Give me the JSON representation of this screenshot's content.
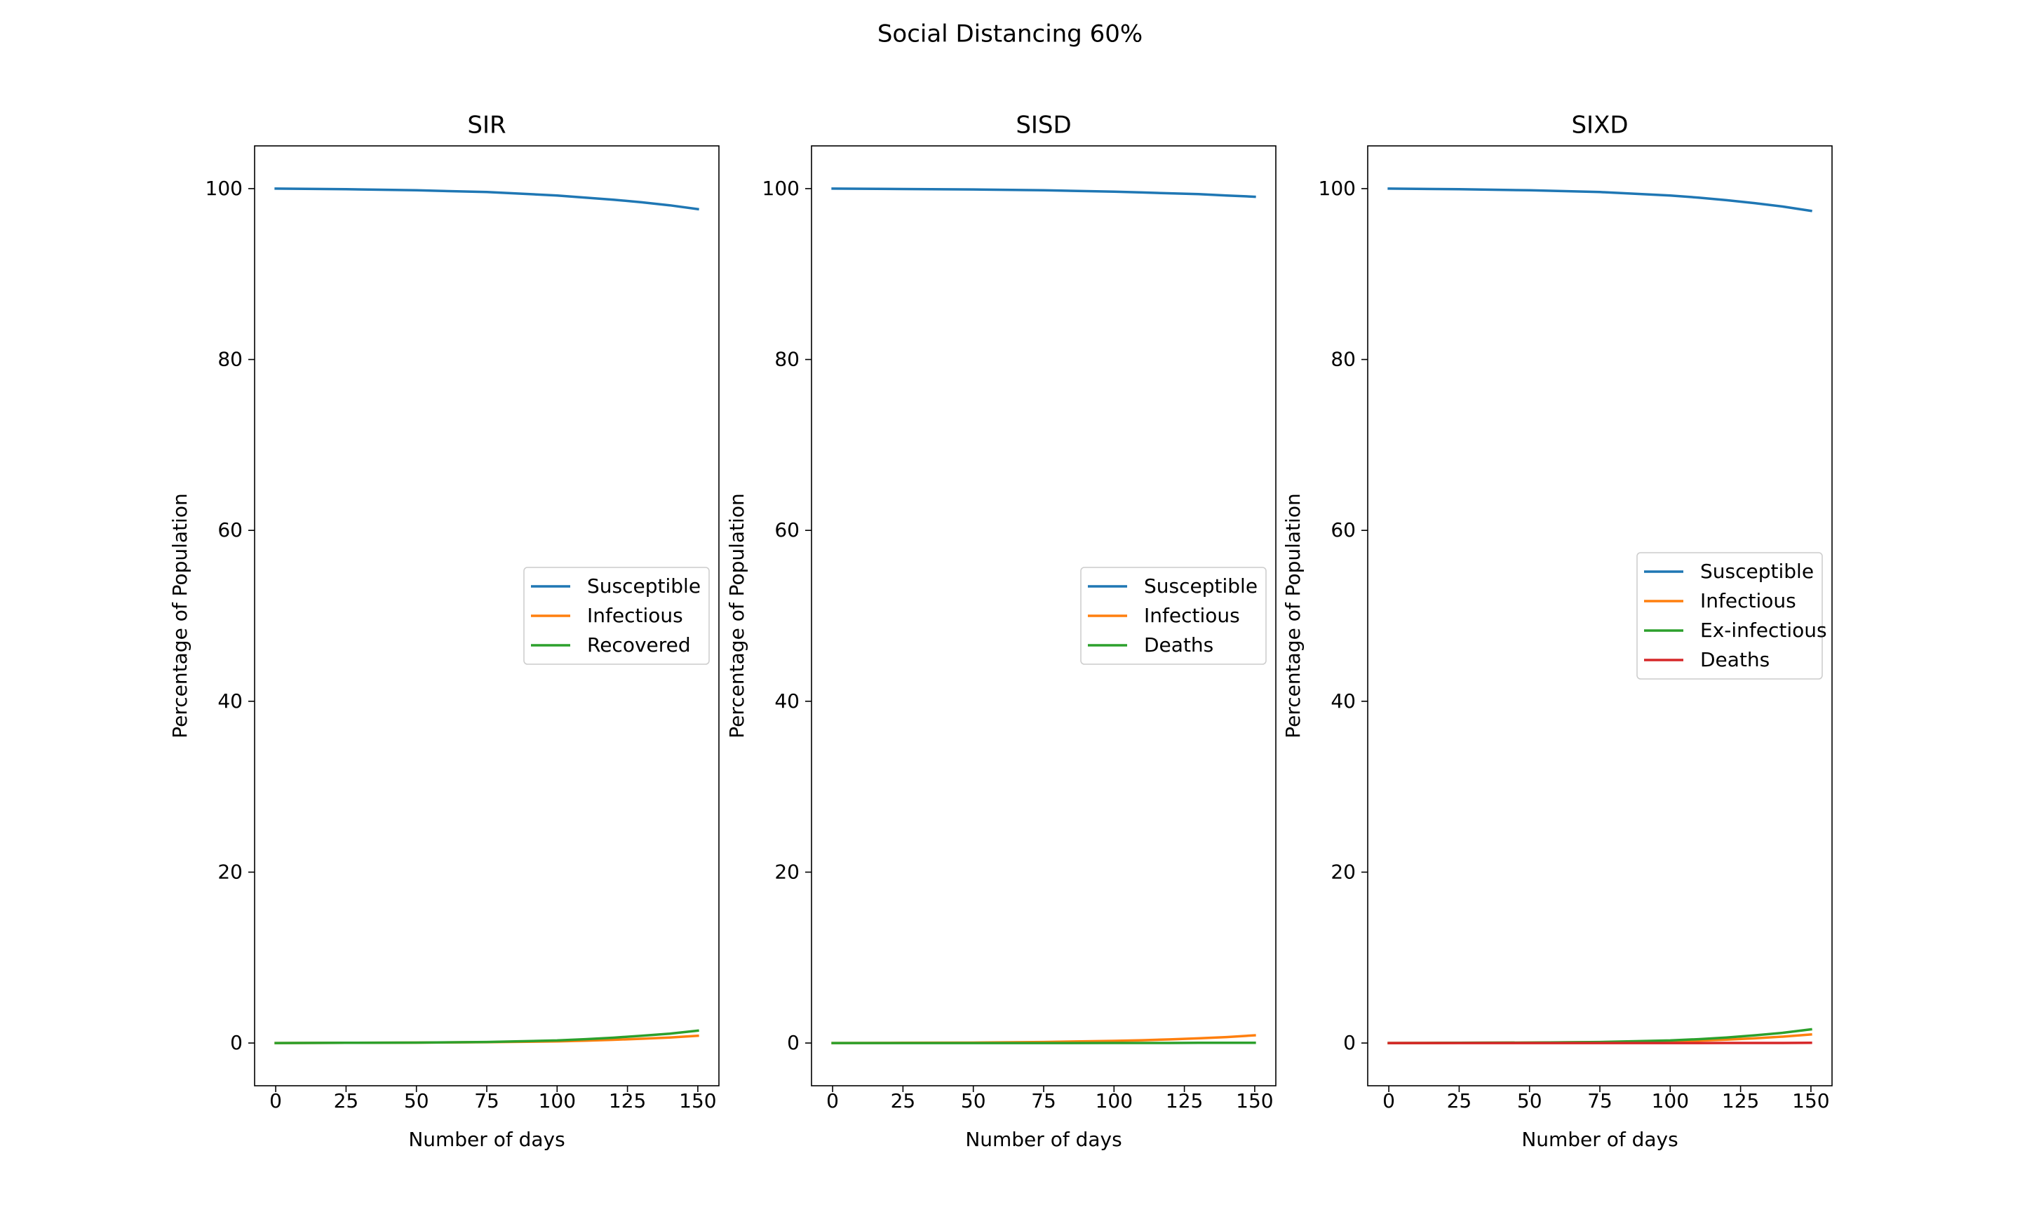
{
  "figure": {
    "suptitle": "Social Distancing 60%"
  },
  "colors": {
    "blue": "#1f77b4",
    "orange": "#ff7f0e",
    "green": "#2ca02c",
    "red": "#d62728"
  },
  "chart_data": [
    {
      "type": "line",
      "title": "SIR",
      "xlabel": "Number of days",
      "ylabel": "Percentage of Population",
      "xlim": [
        -7.5,
        157.5
      ],
      "ylim": [
        -5,
        105
      ],
      "xticks": [
        0,
        25,
        50,
        75,
        100,
        125,
        150
      ],
      "yticks": [
        0,
        20,
        40,
        60,
        80,
        100
      ],
      "legend_position": "center-right",
      "x": [
        0,
        25,
        50,
        75,
        100,
        110,
        120,
        130,
        140,
        150
      ],
      "series": [
        {
          "name": "Susceptible",
          "color": "#1f77b4",
          "values": [
            100,
            99.93,
            99.8,
            99.6,
            99.2,
            98.95,
            98.7,
            98.4,
            98.05,
            97.6
          ]
        },
        {
          "name": "Infectious",
          "color": "#ff7f0e",
          "values": [
            0,
            0.02,
            0.05,
            0.1,
            0.2,
            0.28,
            0.38,
            0.5,
            0.65,
            0.85
          ]
        },
        {
          "name": "Recovered",
          "color": "#2ca02c",
          "values": [
            0,
            0.02,
            0.05,
            0.12,
            0.3,
            0.45,
            0.62,
            0.85,
            1.1,
            1.45
          ]
        }
      ]
    },
    {
      "type": "line",
      "title": "SISD",
      "xlabel": "Number of days",
      "ylabel": "Percentage of Population",
      "xlim": [
        -7.5,
        157.5
      ],
      "ylim": [
        -5,
        105
      ],
      "xticks": [
        0,
        25,
        50,
        75,
        100,
        125,
        150
      ],
      "yticks": [
        0,
        20,
        40,
        60,
        80,
        100
      ],
      "legend_position": "center-right",
      "x": [
        0,
        25,
        50,
        75,
        100,
        110,
        120,
        130,
        140,
        150
      ],
      "series": [
        {
          "name": "Susceptible",
          "color": "#1f77b4",
          "values": [
            100,
            99.95,
            99.9,
            99.8,
            99.65,
            99.55,
            99.45,
            99.35,
            99.2,
            99.05
          ]
        },
        {
          "name": "Infectious",
          "color": "#ff7f0e",
          "values": [
            0,
            0.02,
            0.05,
            0.12,
            0.25,
            0.33,
            0.43,
            0.55,
            0.7,
            0.9
          ]
        },
        {
          "name": "Deaths",
          "color": "#2ca02c",
          "values": [
            0,
            0,
            0,
            0,
            0.01,
            0.01,
            0.01,
            0.02,
            0.02,
            0.03
          ]
        }
      ]
    },
    {
      "type": "line",
      "title": "SIXD",
      "xlabel": "Number of days",
      "ylabel": "Percentage of Population",
      "xlim": [
        -7.5,
        157.5
      ],
      "ylim": [
        -5,
        105
      ],
      "xticks": [
        0,
        25,
        50,
        75,
        100,
        125,
        150
      ],
      "yticks": [
        0,
        20,
        40,
        60,
        80,
        100
      ],
      "legend_position": "center-right",
      "x": [
        0,
        25,
        50,
        75,
        100,
        110,
        120,
        130,
        140,
        150
      ],
      "series": [
        {
          "name": "Susceptible",
          "color": "#1f77b4",
          "values": [
            100,
            99.93,
            99.8,
            99.6,
            99.2,
            98.95,
            98.65,
            98.3,
            97.9,
            97.4
          ]
        },
        {
          "name": "Infectious",
          "color": "#ff7f0e",
          "values": [
            0,
            0.02,
            0.05,
            0.1,
            0.2,
            0.28,
            0.4,
            0.55,
            0.75,
            1.0
          ]
        },
        {
          "name": "Ex-infectious",
          "color": "#2ca02c",
          "values": [
            0,
            0.02,
            0.05,
            0.12,
            0.3,
            0.45,
            0.65,
            0.9,
            1.2,
            1.6
          ]
        },
        {
          "name": "Deaths",
          "color": "#d62728",
          "values": [
            0,
            0,
            0,
            0,
            0,
            0,
            0.01,
            0.01,
            0.01,
            0.02
          ]
        }
      ]
    }
  ]
}
